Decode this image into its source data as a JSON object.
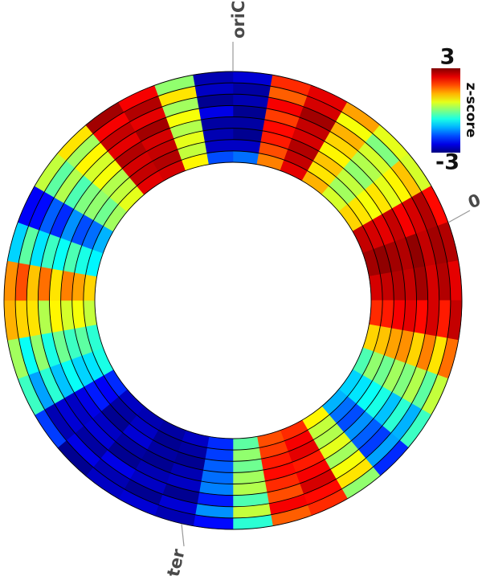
{
  "chart_data": {
    "type": "polar-heatmap",
    "annotations": [
      "oriC",
      "0",
      "ter"
    ],
    "colorbar": {
      "label": "z-score",
      "clim": [
        -3,
        3
      ],
      "ticks": [
        3,
        -3
      ]
    },
    "values": [
      [
        -1.6,
        1.5,
        2.4,
        1.2,
        0.5,
        1.0,
        2.6,
        2.8,
        2.5,
        2.0,
        1.0,
        -0.3,
        -1.0,
        -1.2,
        0.8,
        2.0,
        1.8,
        -0.2,
        -2.0,
        -2.6,
        -2.8,
        -2.7,
        -2.6,
        -2.0,
        -0.6,
        -0.5,
        0.4,
        1.0,
        -0.8,
        -1.2,
        0.2,
        0.6,
        2.4,
        2.5,
        0.8,
        -1.8
      ],
      [
        -2.6,
        1.8,
        2.6,
        0.9,
        0.2,
        0.9,
        2.5,
        2.9,
        2.6,
        2.1,
        1.1,
        0.1,
        -0.9,
        -1.6,
        0.4,
        2.3,
        1.9,
        0.1,
        -1.9,
        -2.8,
        -2.9,
        -2.6,
        -2.8,
        -2.3,
        -0.9,
        -0.2,
        0.7,
        1.3,
        -0.6,
        -1.6,
        -0.1,
        0.4,
        2.6,
        2.7,
        0.4,
        -2.6
      ],
      [
        -2.9,
        2.1,
        2.7,
        1.1,
        0.4,
        0.7,
        2.4,
        2.8,
        2.7,
        2.3,
        1.3,
        -0.1,
        -0.7,
        -1.8,
        0.3,
        2.4,
        2.1,
        -0.1,
        -1.7,
        -2.9,
        -2.8,
        -2.5,
        -2.9,
        -2.1,
        -1.0,
        -0.4,
        0.5,
        1.5,
        -0.3,
        -1.8,
        0.1,
        0.3,
        2.5,
        2.6,
        0.6,
        -2.7
      ],
      [
        -2.8,
        2.2,
        2.5,
        0.8,
        0.1,
        0.9,
        2.6,
        2.7,
        2.6,
        2.4,
        1.4,
        0.2,
        -0.6,
        -1.4,
        0.6,
        2.1,
        2.2,
        0.2,
        -1.6,
        -2.7,
        -2.9,
        -2.8,
        -2.6,
        -2.4,
        -0.7,
        -0.1,
        0.8,
        0.9,
        -0.7,
        -1.4,
        0.0,
        0.7,
        2.7,
        2.5,
        0.3,
        -2.8
      ],
      [
        -2.9,
        1.9,
        2.6,
        1.0,
        0.3,
        0.6,
        2.3,
        2.9,
        2.8,
        2.2,
        1.0,
        0.0,
        -1.1,
        -1.7,
        0.2,
        2.3,
        2.0,
        0.3,
        -1.5,
        -2.6,
        -2.7,
        -2.9,
        -2.5,
        -2.6,
        -1.1,
        -0.6,
        0.3,
        1.6,
        -0.4,
        -2.0,
        -0.3,
        0.5,
        2.4,
        2.8,
        0.7,
        -2.4
      ],
      [
        -2.7,
        2.3,
        2.8,
        1.2,
        0.5,
        0.8,
        2.5,
        2.6,
        2.5,
        2.5,
        1.5,
        0.3,
        -0.5,
        -1.9,
        0.7,
        2.5,
        1.8,
        -0.3,
        -2.1,
        -2.9,
        -2.6,
        -2.4,
        -2.8,
        -2.5,
        -0.5,
        0.1,
        0.9,
        1.1,
        -0.9,
        -1.7,
        0.3,
        0.8,
        2.6,
        2.4,
        0.2,
        -2.9
      ],
      [
        -2.8,
        1.7,
        2.5,
        0.7,
        0.0,
        1.1,
        2.7,
        2.8,
        2.7,
        2.1,
        0.9,
        -0.2,
        -1.2,
        -1.3,
        0.9,
        2.2,
        2.3,
        0.4,
        -1.4,
        -2.5,
        -2.9,
        -2.7,
        -2.4,
        -2.7,
        -1.3,
        -0.7,
        1.0,
        1.8,
        -0.2,
        -2.2,
        -0.2,
        0.2,
        2.3,
        2.7,
        0.9,
        -2.6
      ],
      [
        -2.5,
        2.0,
        2.4,
        1.3,
        0.6,
        0.5,
        2.2,
        2.7,
        2.4,
        2.6,
        1.6,
        0.4,
        -0.4,
        -2.0,
        0.1,
        2.0,
        1.7,
        -0.5,
        -2.2,
        -2.7,
        -2.5,
        -2.6,
        -2.9,
        -1.9,
        -0.4,
        0.2,
        1.2,
        1.4,
        -1.0,
        -2.3,
        0.4,
        0.9,
        2.8,
        2.3,
        0.1,
        -2.7
      ]
    ]
  }
}
